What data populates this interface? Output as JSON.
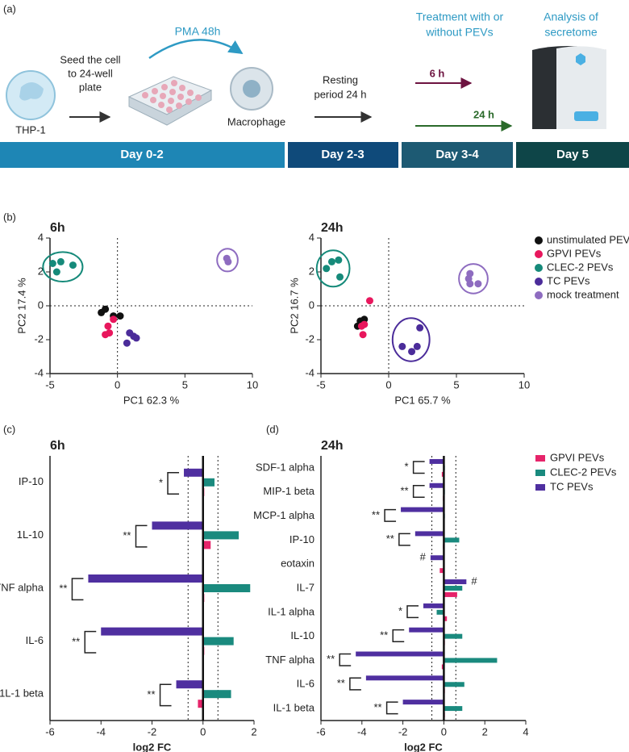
{
  "diagram": {
    "panels": [
      "(a)",
      "(b)",
      "(c)",
      "(d)"
    ],
    "pma": "PMA 48h",
    "treatment": [
      "Treatment with or",
      "without PEVs"
    ],
    "analysis": [
      "Analysis of",
      "secretome"
    ],
    "seed": [
      "Seed the cell",
      "to 24-well",
      "plate"
    ],
    "cell": "THP-1",
    "macrophage": "Macrophage",
    "resting": [
      "Resting",
      "period 24 h"
    ],
    "short": "6 h",
    "long": "24 h",
    "timeline": [
      "Day 0-2",
      "Day 2-3",
      "Day 3-4",
      "Day 5"
    ]
  },
  "chart_data": [
    {
      "type": "scatter",
      "title": "6h",
      "xlabel": "PC1 62.3 %",
      "ylabel": "PC2 17.4 %",
      "xlim": [
        -5,
        10
      ],
      "xticks": [
        -5,
        0,
        5,
        10
      ],
      "ylim": [
        -4,
        4
      ],
      "yticks": [
        -4,
        -2,
        0,
        2,
        4
      ],
      "series": [
        {
          "color": "#111111",
          "x": [
            -1.2,
            -0.9,
            -0.3,
            0.2
          ],
          "values": [
            -0.4,
            -0.2,
            -0.6,
            -0.6
          ]
        },
        {
          "color": "#e8175d",
          "x": [
            -0.3,
            -0.7,
            -0.9,
            -0.6
          ],
          "values": [
            -0.8,
            -1.2,
            -1.7,
            -1.6
          ]
        },
        {
          "color": "#168a7a",
          "x": [
            -4.8,
            -4.2,
            -3.3,
            -4.5
          ],
          "values": [
            2.5,
            2.6,
            2.4,
            2.0
          ]
        },
        {
          "color": "#4b2c9a",
          "x": [
            0.9,
            1.2,
            1.4,
            0.7
          ],
          "values": [
            -1.6,
            -1.8,
            -1.9,
            -2.2
          ]
        },
        {
          "color": "#8e6cc0",
          "x": [
            8.1,
            8.2
          ],
          "values": [
            2.8,
            2.6
          ]
        }
      ]
    },
    {
      "type": "scatter",
      "title": "24h",
      "xlabel": "PC1 65.7 %",
      "ylabel": "PC2 16.7 %",
      "xlim": [
        -5,
        10
      ],
      "xticks": [
        -5,
        0,
        5,
        10
      ],
      "ylim": [
        -4,
        4
      ],
      "yticks": [
        -4,
        -2,
        0,
        2,
        4
      ],
      "legend": "right",
      "series": [
        {
          "name": "unstimulated PEVs",
          "color": "#111111",
          "x": [
            -2.3,
            -2.1,
            -1.8
          ],
          "values": [
            -1.2,
            -0.9,
            -0.8
          ]
        },
        {
          "name": "GPVI PEVs",
          "color": "#e8175d",
          "x": [
            -1.4,
            -1.8,
            -2.0,
            -1.9
          ],
          "values": [
            0.3,
            -1.1,
            -1.2,
            -1.7
          ]
        },
        {
          "name": "CLEC-2 PEVs",
          "color": "#168a7a",
          "x": [
            -4.2,
            -3.7,
            -4.6,
            -3.6
          ],
          "values": [
            2.6,
            2.7,
            2.2,
            1.7
          ]
        },
        {
          "name": "TC PEVs",
          "color": "#4b2c9a",
          "x": [
            2.3,
            1.0,
            1.7,
            2.1
          ],
          "values": [
            -1.3,
            -2.4,
            -2.7,
            -2.4
          ]
        },
        {
          "name": "mock treatment",
          "color": "#8e6cc0",
          "x": [
            6.0,
            5.9,
            6.6,
            6.0
          ],
          "values": [
            1.9,
            1.6,
            1.3,
            1.3
          ]
        }
      ]
    },
    {
      "type": "bar",
      "orientation": "horizontal",
      "title": "6h",
      "xlabel": "log2 FC",
      "xlim": [
        -6,
        2
      ],
      "xticks": [
        -6,
        -4,
        -2,
        0,
        2
      ],
      "reference_lines": [
        -0.585,
        0.585
      ],
      "categories": [
        "IP-10",
        "1L-10",
        "TNF alpha",
        "IL-6",
        "1L-1 beta"
      ],
      "annotations": [
        "*",
        "**",
        "**",
        "**",
        "**"
      ],
      "series": [
        {
          "color": "#e6246a",
          "values": [
            0.05,
            0.3,
            0.05,
            0.05,
            -0.2
          ]
        },
        {
          "color": "#1a8a7e",
          "values": [
            0.45,
            1.4,
            1.85,
            1.2,
            1.1
          ]
        },
        {
          "color": "#4f2fa0",
          "values": [
            -0.75,
            -2.0,
            -4.5,
            -4.0,
            -1.05
          ]
        }
      ]
    },
    {
      "type": "bar",
      "orientation": "horizontal",
      "title": "24h",
      "xlabel": "log2 FC",
      "xlim": [
        -6,
        4
      ],
      "xticks": [
        -6,
        -4,
        -2,
        0,
        2,
        4
      ],
      "reference_lines": [
        -0.585,
        0.585
      ],
      "legend": "right",
      "categories": [
        "SDF-1 alpha",
        "MIP-1 beta",
        "MCP-1 alpha",
        "IP-10",
        "eotaxin",
        "IL-7",
        "IL-1 alpha",
        "IL-10",
        "TNF alpha",
        "IL-6",
        "IL-1 beta"
      ],
      "annotations": [
        "*",
        "**",
        "**",
        "**",
        "#",
        "#",
        "*",
        "**",
        "**",
        "**",
        "**"
      ],
      "series": [
        {
          "name": "GPVI PEVs",
          "color": "#e6246a",
          "values": [
            -0.1,
            -0.05,
            0.02,
            -0.05,
            -0.2,
            0.65,
            0.15,
            0.05,
            -0.1,
            0.05,
            0.05
          ]
        },
        {
          "name": "CLEC-2 PEVs",
          "color": "#1a8a7e",
          "values": [
            0.05,
            0.05,
            0.05,
            0.75,
            0.02,
            0.9,
            -0.35,
            0.9,
            2.6,
            1.0,
            0.9
          ]
        },
        {
          "name": "TC PEVs",
          "color": "#4f2fa0",
          "values": [
            -0.7,
            -0.7,
            -2.1,
            -1.4,
            -0.65,
            1.1,
            -1.0,
            -1.7,
            -4.3,
            -3.8,
            -2.0
          ]
        }
      ]
    }
  ]
}
